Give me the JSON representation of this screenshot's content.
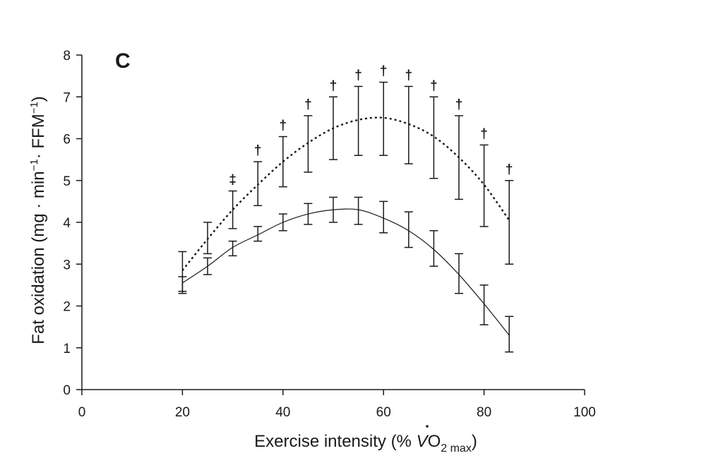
{
  "chart_data": {
    "type": "line",
    "panel_label": "C",
    "xlabel": "Exercise intensity (% V̇O2 max)",
    "xlabel_parts": {
      "prefix": "Exercise intensity (% ",
      "v": "V",
      "o": "O",
      "sub": "2 max",
      "suffix": ")"
    },
    "ylabel": "Fat oxidation (mg · min⁻¹ · FFM⁻¹)",
    "ylabel_parts": {
      "prefix": "Fat oxidation (mg · min",
      "sup1": "−1",
      "mid": "· FFM",
      "sup2": "−1",
      "suffix": ")"
    },
    "xlim": [
      0,
      100
    ],
    "ylim": [
      0,
      8
    ],
    "xticks": [
      0,
      20,
      40,
      60,
      80,
      100
    ],
    "yticks": [
      0,
      1,
      2,
      3,
      4,
      5,
      6,
      7,
      8
    ],
    "grid": false,
    "series": [
      {
        "style": "dotted",
        "x": [
          20,
          25,
          30,
          35,
          40,
          45,
          50,
          55,
          60,
          65,
          70,
          75,
          80,
          85
        ],
        "mean": [
          2.85,
          3.6,
          4.3,
          4.9,
          5.45,
          5.9,
          6.25,
          6.45,
          6.5,
          6.35,
          6.05,
          5.55,
          4.9,
          4.05
        ],
        "error_low": [
          2.35,
          3.25,
          3.85,
          4.4,
          4.85,
          5.2,
          5.5,
          5.6,
          5.6,
          5.4,
          5.05,
          4.55,
          3.9,
          3.0
        ],
        "error_high": [
          3.3,
          4.0,
          4.75,
          5.45,
          6.05,
          6.55,
          7.0,
          7.25,
          7.35,
          7.25,
          7.0,
          6.55,
          5.85,
          5.0
        ]
      },
      {
        "style": "solid",
        "x": [
          20,
          25,
          30,
          35,
          40,
          45,
          50,
          55,
          60,
          65,
          70,
          75,
          80,
          85
        ],
        "mean": [
          2.55,
          2.95,
          3.4,
          3.7,
          4.0,
          4.2,
          4.3,
          4.3,
          4.1,
          3.8,
          3.35,
          2.75,
          2.05,
          1.3
        ],
        "error_low": [
          2.3,
          2.75,
          3.2,
          3.55,
          3.8,
          3.95,
          4.0,
          3.95,
          3.75,
          3.4,
          2.95,
          2.3,
          1.55,
          0.9
        ],
        "error_high": [
          2.7,
          3.15,
          3.55,
          3.9,
          4.2,
          4.45,
          4.6,
          4.6,
          4.5,
          4.25,
          3.8,
          3.25,
          2.5,
          1.75
        ]
      }
    ],
    "markers": [
      {
        "x": 30,
        "symbol": "‡"
      },
      {
        "x": 35,
        "symbol": "†"
      },
      {
        "x": 40,
        "symbol": "†"
      },
      {
        "x": 45,
        "symbol": "†"
      },
      {
        "x": 50,
        "symbol": "†"
      },
      {
        "x": 55,
        "symbol": "†"
      },
      {
        "x": 60,
        "symbol": "†"
      },
      {
        "x": 65,
        "symbol": "†"
      },
      {
        "x": 70,
        "symbol": "†"
      },
      {
        "x": 75,
        "symbol": "†"
      },
      {
        "x": 80,
        "symbol": "†"
      },
      {
        "x": 85,
        "symbol": "†"
      }
    ]
  }
}
